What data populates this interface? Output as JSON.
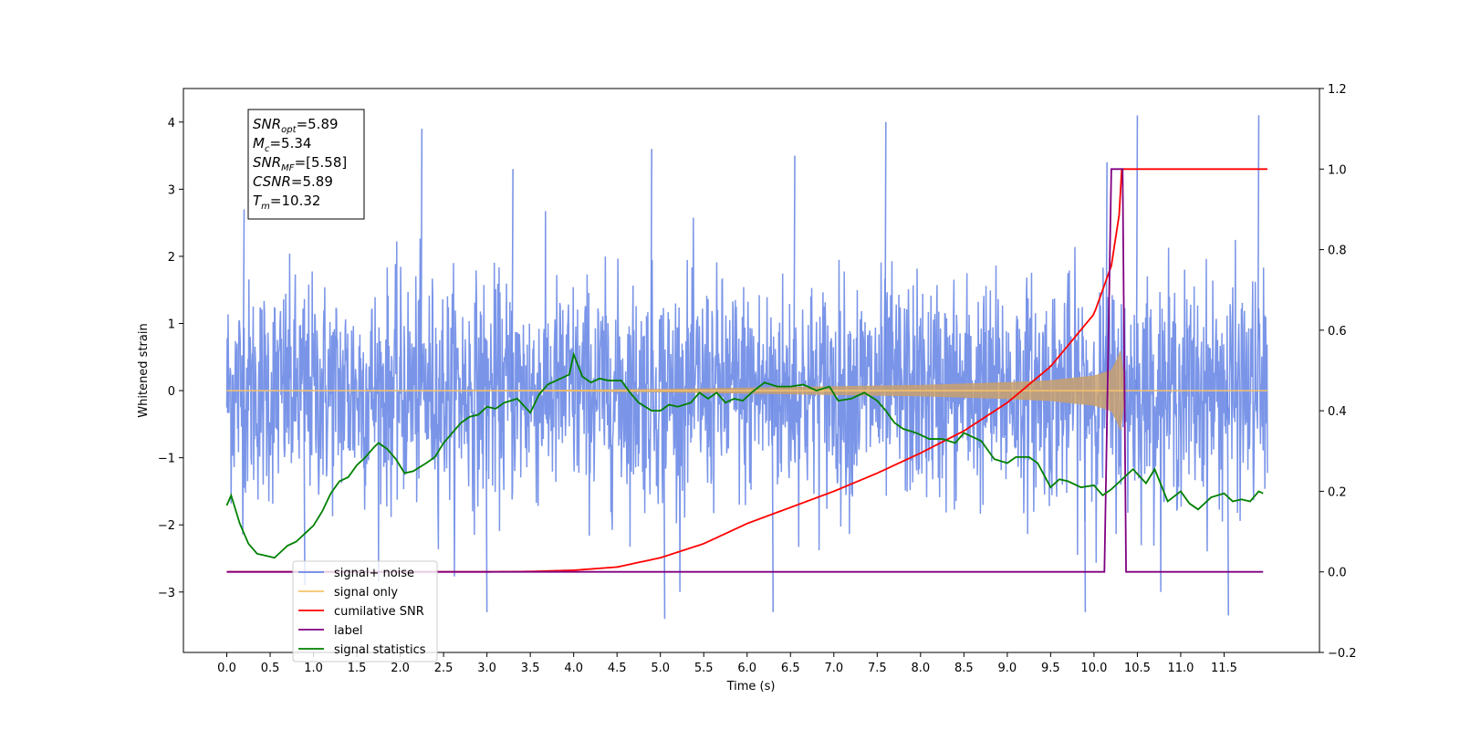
{
  "chart_data": {
    "type": "line",
    "xlabel": "Time (s)",
    "ylabel_left": "Whitened strain",
    "ylabel_right": "",
    "xlim": [
      -0.5,
      12.6
    ],
    "ylim_left": [
      -3.9,
      4.5
    ],
    "ylim_right": [
      -0.2,
      1.2
    ],
    "x_ticks": [
      0.0,
      0.5,
      1.0,
      1.5,
      2.0,
      2.5,
      3.0,
      3.5,
      4.0,
      4.5,
      5.0,
      5.5,
      6.0,
      6.5,
      7.0,
      7.5,
      8.0,
      8.5,
      9.0,
      9.5,
      10.0,
      10.5,
      11.0,
      11.5
    ],
    "x_tick_labels": [
      "0.0",
      "0.5",
      "1.0",
      "1.5",
      "2.0",
      "2.5",
      "3.0",
      "3.5",
      "4.0",
      "4.5",
      "5.0",
      "5.5",
      "6.0",
      "6.5",
      "7.0",
      "7.5",
      "8.0",
      "8.5",
      "9.0",
      "9.5",
      "10.0",
      "10.5",
      "11.0",
      "11.5"
    ],
    "y_ticks_left": [
      -3,
      -2,
      -1,
      0,
      1,
      2,
      3,
      4
    ],
    "y_tick_labels_left": [
      "−3",
      "−2",
      "−1",
      "0",
      "1",
      "2",
      "3",
      "4"
    ],
    "y_ticks_right": [
      -0.2,
      0.0,
      0.2,
      0.4,
      0.6,
      0.8,
      1.0,
      1.2
    ],
    "y_tick_labels_right": [
      "−0.2",
      "0.0",
      "0.2",
      "0.4",
      "0.6",
      "0.8",
      "1.0",
      "1.2"
    ],
    "grid": false,
    "annotation": {
      "lines": [
        {
          "main": "SNR",
          "sub": "opt",
          "value": "=5.89"
        },
        {
          "main": "M",
          "sub": "c",
          "value": "=5.34"
        },
        {
          "main": "SNR",
          "sub": "MF",
          "value": "=[5.58]"
        },
        {
          "main": "CSNR",
          "sub": "",
          "value": "=5.89"
        },
        {
          "main": "T",
          "sub": "m",
          "value": "=10.32"
        }
      ]
    },
    "legend": {
      "placement": "lower-left",
      "entries": [
        {
          "label": "signal+ noise",
          "color": "#6b8ae6"
        },
        {
          "label": "signal only",
          "color": "#f5c26b"
        },
        {
          "label": "cumilative SNR",
          "color": "#ff0000"
        },
        {
          "label": "label",
          "color": "#800080"
        },
        {
          "label": "signal statistics",
          "color": "#008000"
        }
      ]
    },
    "series": [
      {
        "name": "signal+ noise",
        "axis": "left",
        "color": "#6b8ae6",
        "x_range": [
          0.0,
          12.0
        ],
        "envelope": {
          "x": [
            0.0,
            12.0
          ],
          "p95_hi": 1.6,
          "p95_lo": -1.6
        },
        "notable_peaks": [
          {
            "x": 0.2,
            "y": 2.7
          },
          {
            "x": 2.25,
            "y": 3.9
          },
          {
            "x": 3.3,
            "y": 3.3
          },
          {
            "x": 4.9,
            "y": 3.6
          },
          {
            "x": 6.55,
            "y": 3.5
          },
          {
            "x": 7.6,
            "y": 4.0
          },
          {
            "x": 10.15,
            "y": 3.4
          },
          {
            "x": 10.5,
            "y": 4.1
          },
          {
            "x": 11.9,
            "y": 4.1
          },
          {
            "x": 5.05,
            "y": -3.4
          },
          {
            "x": 3.0,
            "y": -3.3
          },
          {
            "x": 6.3,
            "y": -3.3
          },
          {
            "x": 9.9,
            "y": -3.3
          },
          {
            "x": 11.55,
            "y": -3.35
          },
          {
            "x": 0.9,
            "y": -2.9
          }
        ]
      },
      {
        "name": "signal only",
        "axis": "left",
        "color": "#f5c26b",
        "x": [
          0.0,
          3.0,
          4.0,
          5.0,
          6.0,
          7.0,
          8.0,
          8.5,
          9.0,
          9.5,
          10.0,
          10.2,
          10.3,
          10.32,
          10.35,
          12.0
        ],
        "amplitude": [
          0.0,
          0.005,
          0.01,
          0.02,
          0.04,
          0.06,
          0.08,
          0.1,
          0.12,
          0.15,
          0.22,
          0.3,
          0.55,
          0.7,
          0.0,
          0.0
        ]
      },
      {
        "name": "cumilative SNR",
        "axis": "right",
        "color": "#ff0000",
        "x": [
          0.0,
          3.0,
          3.5,
          4.0,
          4.5,
          5.0,
          5.5,
          6.0,
          6.5,
          7.0,
          7.5,
          8.0,
          8.5,
          9.0,
          9.5,
          10.0,
          10.2,
          10.3,
          10.32,
          12.0
        ],
        "y": [
          0.0,
          0.0,
          0.001,
          0.004,
          0.012,
          0.035,
          0.07,
          0.12,
          0.16,
          0.2,
          0.245,
          0.295,
          0.35,
          0.42,
          0.51,
          0.64,
          0.76,
          0.9,
          1.0,
          1.0
        ]
      },
      {
        "name": "label",
        "axis": "right",
        "color": "#800080",
        "x": [
          0.0,
          10.12,
          10.2,
          10.33,
          10.37,
          11.95
        ],
        "y": [
          0.0,
          0.0,
          1.0,
          1.0,
          0.0,
          0.0
        ]
      },
      {
        "name": "signal statistics",
        "axis": "right",
        "color": "#008000",
        "x": [
          0.0,
          0.05,
          0.15,
          0.25,
          0.35,
          0.45,
          0.55,
          0.6,
          0.7,
          0.8,
          0.9,
          1.0,
          1.1,
          1.2,
          1.3,
          1.4,
          1.5,
          1.6,
          1.7,
          1.75,
          1.85,
          1.95,
          2.05,
          2.15,
          2.3,
          2.4,
          2.5,
          2.6,
          2.7,
          2.8,
          2.9,
          3.0,
          3.1,
          3.2,
          3.35,
          3.5,
          3.6,
          3.7,
          3.85,
          3.95,
          4.0,
          4.1,
          4.2,
          4.3,
          4.4,
          4.55,
          4.65,
          4.75,
          4.9,
          5.0,
          5.1,
          5.2,
          5.35,
          5.45,
          5.55,
          5.65,
          5.75,
          5.85,
          5.95,
          6.05,
          6.2,
          6.35,
          6.5,
          6.65,
          6.8,
          6.95,
          7.05,
          7.2,
          7.35,
          7.5,
          7.6,
          7.7,
          7.8,
          7.95,
          8.1,
          8.25,
          8.4,
          8.5,
          8.6,
          8.7,
          8.85,
          9.0,
          9.1,
          9.25,
          9.35,
          9.5,
          9.6,
          9.7,
          9.85,
          10.0,
          10.1,
          10.2,
          10.3,
          10.45,
          10.6,
          10.7,
          10.85,
          11.0,
          11.1,
          11.2,
          11.35,
          11.5,
          11.6,
          11.7,
          11.8,
          11.9,
          11.95
        ],
        "y": [
          0.165,
          0.19,
          0.12,
          0.07,
          0.045,
          0.04,
          0.035,
          0.045,
          0.065,
          0.075,
          0.095,
          0.115,
          0.15,
          0.195,
          0.225,
          0.235,
          0.265,
          0.285,
          0.31,
          0.32,
          0.305,
          0.28,
          0.245,
          0.25,
          0.27,
          0.285,
          0.32,
          0.345,
          0.37,
          0.385,
          0.39,
          0.41,
          0.405,
          0.42,
          0.43,
          0.395,
          0.44,
          0.465,
          0.48,
          0.49,
          0.54,
          0.485,
          0.47,
          0.48,
          0.475,
          0.475,
          0.445,
          0.42,
          0.4,
          0.4,
          0.415,
          0.41,
          0.42,
          0.445,
          0.43,
          0.445,
          0.42,
          0.43,
          0.425,
          0.445,
          0.47,
          0.46,
          0.46,
          0.465,
          0.45,
          0.46,
          0.425,
          0.43,
          0.445,
          0.425,
          0.4,
          0.37,
          0.355,
          0.345,
          0.33,
          0.33,
          0.32,
          0.345,
          0.335,
          0.325,
          0.28,
          0.27,
          0.285,
          0.285,
          0.27,
          0.21,
          0.23,
          0.225,
          0.21,
          0.215,
          0.19,
          0.205,
          0.225,
          0.255,
          0.22,
          0.255,
          0.175,
          0.2,
          0.17,
          0.155,
          0.185,
          0.195,
          0.175,
          0.18,
          0.175,
          0.2,
          0.195
        ]
      }
    ]
  }
}
